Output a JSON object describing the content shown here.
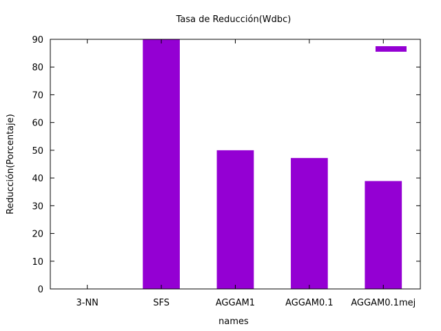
{
  "chart_data": {
    "type": "bar",
    "title": "Tasa de Reducción(Wdbc)",
    "xlabel": "names",
    "ylabel": "Reducción(Porcentaje)",
    "categories": [
      "3-NN",
      "SFS",
      "AGGAM1",
      "AGGAM0.1",
      "AGGAM0.1mej"
    ],
    "values": [
      0,
      90,
      50,
      47.2,
      38.9
    ],
    "ylim": [
      0,
      90
    ],
    "yticks": [
      "0",
      "10",
      "20",
      "30",
      "40",
      "50",
      "60",
      "70",
      "80",
      "90"
    ],
    "bar_color": "#9400D3",
    "legend": {
      "position": "top-right",
      "entries": [
        ""
      ]
    },
    "grid": false
  }
}
